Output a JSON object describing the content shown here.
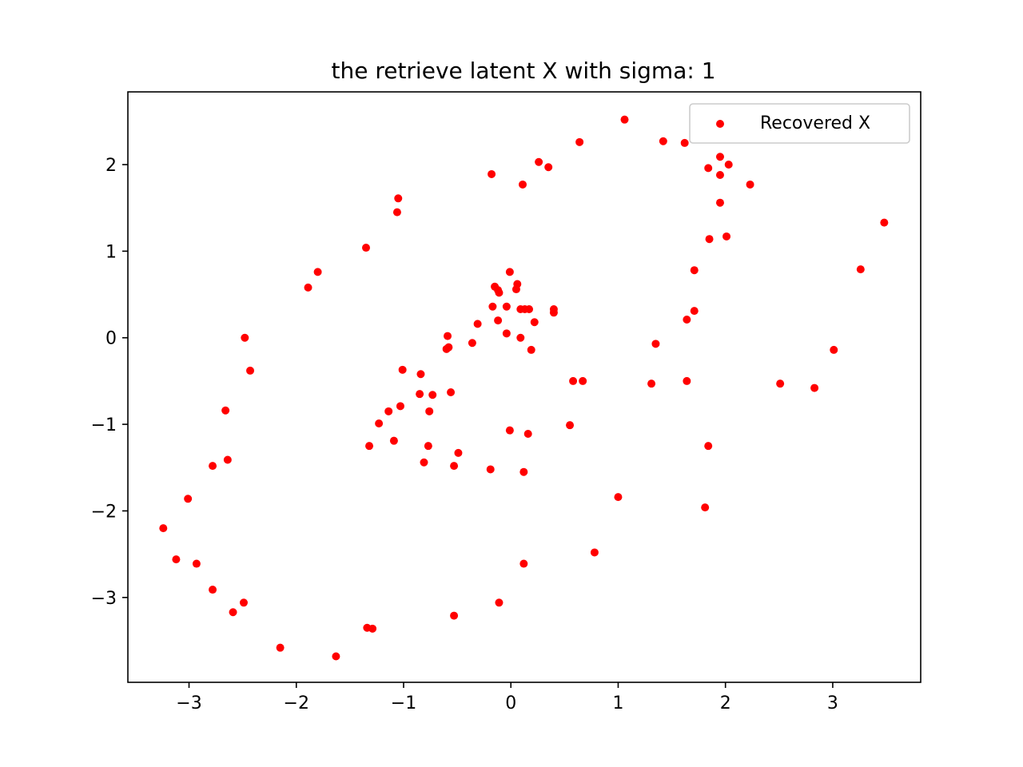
{
  "chart_data": {
    "type": "scatter",
    "title": "the retrieve latent X with sigma: 1",
    "xlabel": "",
    "ylabel": "",
    "xlim": [
      -3.57,
      3.82
    ],
    "ylim": [
      -3.98,
      2.84
    ],
    "xticks": [
      -3,
      -2,
      -1,
      0,
      1,
      2,
      3
    ],
    "yticks": [
      -3,
      -2,
      -1,
      0,
      1,
      2
    ],
    "xtick_labels": [
      "−3",
      "−2",
      "−1",
      "0",
      "1",
      "2",
      "3"
    ],
    "ytick_labels": [
      "−3",
      "−2",
      "−1",
      "0",
      "1",
      "2"
    ],
    "grid": false,
    "legend_position": "top-right",
    "series": [
      {
        "name": "Recovered X",
        "color": "#ff0000",
        "marker": "circle",
        "points": [
          [
            1.06,
            2.52
          ],
          [
            0.64,
            2.26
          ],
          [
            1.42,
            2.27
          ],
          [
            1.62,
            2.25
          ],
          [
            1.95,
            2.09
          ],
          [
            2.03,
            2.0
          ],
          [
            1.84,
            1.96
          ],
          [
            1.95,
            1.88
          ],
          [
            2.23,
            1.77
          ],
          [
            1.95,
            1.56
          ],
          [
            0.26,
            2.03
          ],
          [
            0.35,
            1.97
          ],
          [
            -0.18,
            1.89
          ],
          [
            0.11,
            1.77
          ],
          [
            -1.05,
            1.61
          ],
          [
            -1.06,
            1.45
          ],
          [
            -1.35,
            1.04
          ],
          [
            -1.8,
            0.76
          ],
          [
            -1.89,
            0.58
          ],
          [
            3.48,
            1.33
          ],
          [
            2.01,
            1.17
          ],
          [
            1.85,
            1.14
          ],
          [
            1.71,
            0.78
          ],
          [
            3.26,
            0.79
          ],
          [
            1.71,
            0.31
          ],
          [
            1.64,
            0.21
          ],
          [
            1.35,
            -0.07
          ],
          [
            3.01,
            -0.14
          ],
          [
            2.51,
            -0.53
          ],
          [
            2.83,
            -0.58
          ],
          [
            1.31,
            -0.53
          ],
          [
            1.64,
            -0.5
          ],
          [
            -0.01,
            0.76
          ],
          [
            -0.15,
            0.59
          ],
          [
            -0.12,
            0.55
          ],
          [
            -0.11,
            0.52
          ],
          [
            0.06,
            0.62
          ],
          [
            0.05,
            0.56
          ],
          [
            -0.17,
            0.36
          ],
          [
            -0.04,
            0.36
          ],
          [
            0.09,
            0.33
          ],
          [
            0.13,
            0.33
          ],
          [
            0.17,
            0.33
          ],
          [
            0.4,
            0.33
          ],
          [
            0.4,
            0.29
          ],
          [
            -0.12,
            0.2
          ],
          [
            0.22,
            0.18
          ],
          [
            -0.31,
            0.16
          ],
          [
            -0.04,
            0.05
          ],
          [
            0.09,
            0.0
          ],
          [
            -0.59,
            0.02
          ],
          [
            -0.6,
            -0.13
          ],
          [
            -0.58,
            -0.11
          ],
          [
            -0.36,
            -0.06
          ],
          [
            0.19,
            -0.14
          ],
          [
            -2.48,
            0.0
          ],
          [
            -2.43,
            -0.38
          ],
          [
            -1.01,
            -0.37
          ],
          [
            -0.84,
            -0.42
          ],
          [
            0.58,
            -0.5
          ],
          [
            0.67,
            -0.5
          ],
          [
            -0.85,
            -0.65
          ],
          [
            -0.73,
            -0.66
          ],
          [
            -0.56,
            -0.63
          ],
          [
            -1.03,
            -0.79
          ],
          [
            -0.76,
            -0.85
          ],
          [
            -1.14,
            -0.85
          ],
          [
            -2.66,
            -0.84
          ],
          [
            -1.23,
            -0.99
          ],
          [
            0.55,
            -1.01
          ],
          [
            -0.01,
            -1.07
          ],
          [
            0.16,
            -1.11
          ],
          [
            -1.09,
            -1.19
          ],
          [
            -1.32,
            -1.25
          ],
          [
            -0.77,
            -1.25
          ],
          [
            1.84,
            -1.25
          ],
          [
            -0.49,
            -1.33
          ],
          [
            -2.64,
            -1.41
          ],
          [
            -0.81,
            -1.44
          ],
          [
            -0.53,
            -1.48
          ],
          [
            -2.78,
            -1.48
          ],
          [
            -0.19,
            -1.52
          ],
          [
            0.12,
            -1.55
          ],
          [
            -3.01,
            -1.86
          ],
          [
            1.0,
            -1.84
          ],
          [
            1.81,
            -1.96
          ],
          [
            -3.24,
            -2.2
          ],
          [
            0.78,
            -2.48
          ],
          [
            -3.12,
            -2.56
          ],
          [
            -2.93,
            -2.61
          ],
          [
            0.12,
            -2.61
          ],
          [
            -2.78,
            -2.91
          ],
          [
            -2.49,
            -3.06
          ],
          [
            -0.11,
            -3.06
          ],
          [
            -2.59,
            -3.17
          ],
          [
            -0.53,
            -3.21
          ],
          [
            -2.15,
            -3.58
          ],
          [
            -1.34,
            -3.35
          ],
          [
            -1.29,
            -3.36
          ],
          [
            -1.63,
            -3.68
          ]
        ]
      }
    ]
  }
}
